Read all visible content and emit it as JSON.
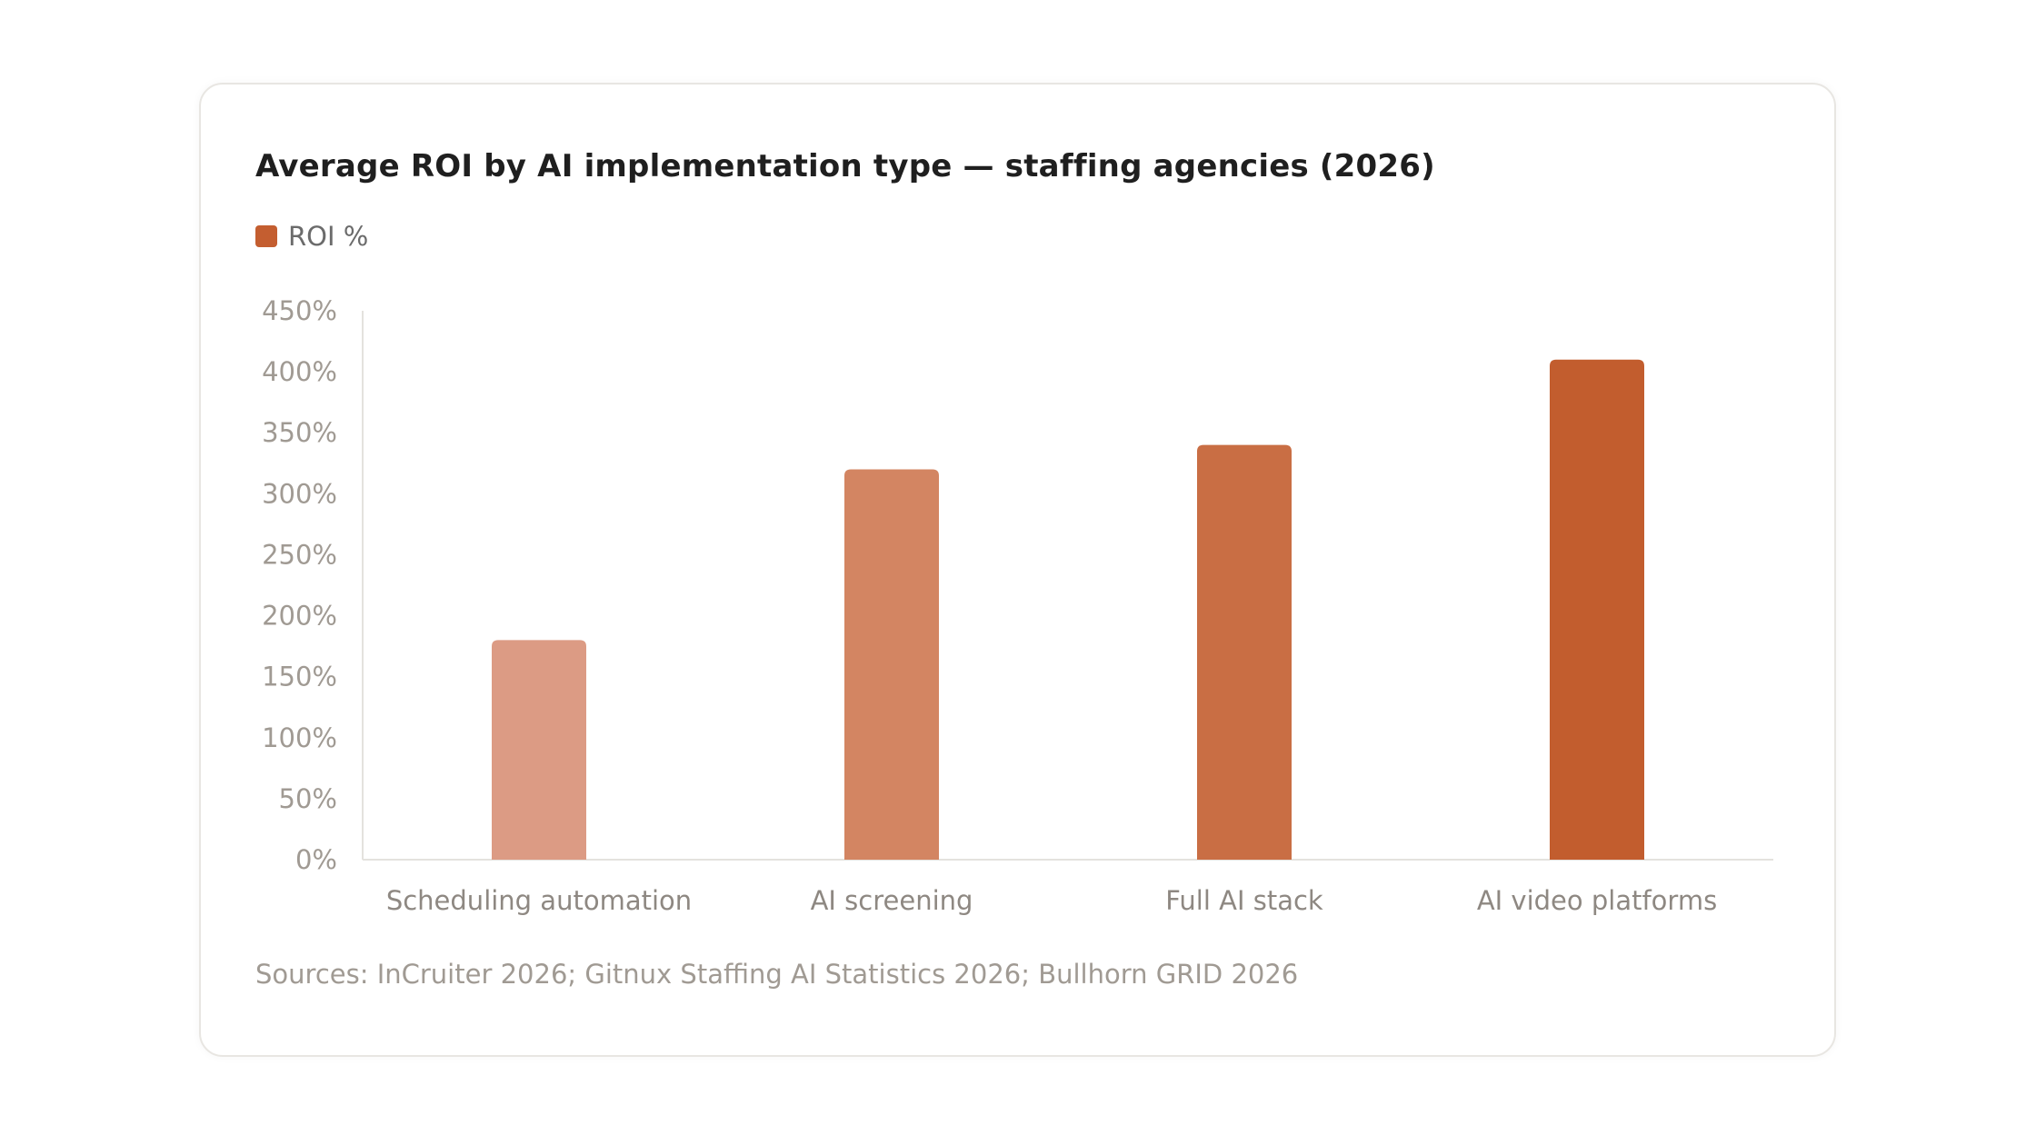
{
  "chart_data": {
    "type": "bar",
    "title": "Average ROI by AI implementation type — staffing agencies (2026)",
    "legend": [
      {
        "name": "ROI %",
        "color": "#c45e30"
      }
    ],
    "legend_position": "top-left",
    "categories": [
      "Scheduling automation",
      "AI screening",
      "Full AI stack",
      "AI video platforms"
    ],
    "series": [
      {
        "name": "ROI %",
        "values": [
          180,
          320,
          340,
          410
        ]
      }
    ],
    "bar_colors": [
      "#dc9b84",
      "#d38562",
      "#c96e44",
      "#c25d2e"
    ],
    "ylim": [
      0,
      450
    ],
    "yticks": [
      0,
      50,
      100,
      150,
      200,
      250,
      300,
      350,
      400,
      450
    ],
    "ytick_labels": [
      "0%",
      "50%",
      "100%",
      "150%",
      "200%",
      "250%",
      "300%",
      "350%",
      "400%",
      "450%"
    ],
    "grid": false,
    "xlabel": "",
    "ylabel": ""
  },
  "source": "Sources: InCruiter 2026; Gitnux Staffing AI Statistics 2026; Bullhorn GRID 2026"
}
